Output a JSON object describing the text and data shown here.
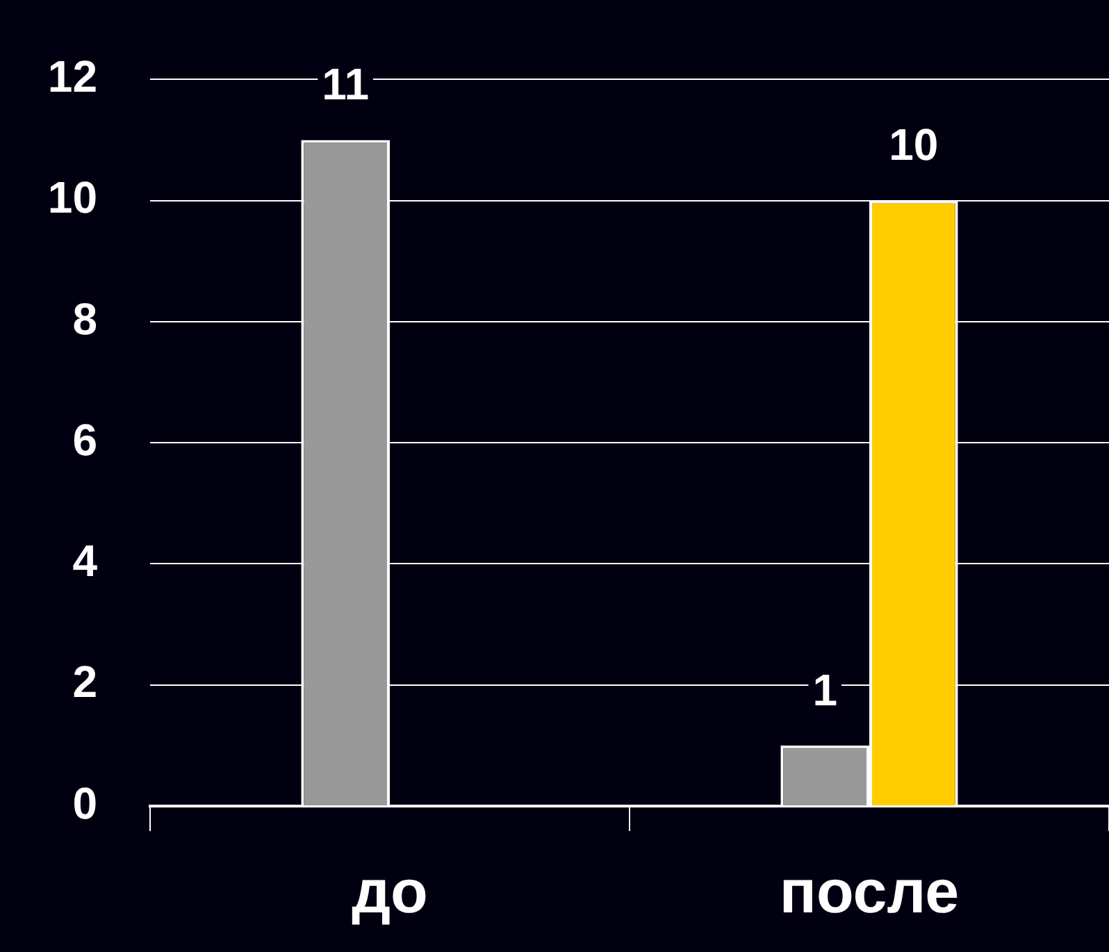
{
  "chart_data": {
    "type": "bar",
    "categories": [
      "до",
      "после"
    ],
    "series": [
      {
        "color": "#999999",
        "values": [
          11,
          1
        ]
      },
      {
        "color": "#ffcc00",
        "values": [
          null,
          10
        ]
      }
    ],
    "ylim": [
      0,
      12
    ],
    "yticks": [
      0,
      2,
      4,
      6,
      8,
      10,
      12
    ],
    "grid": "y",
    "legend": false,
    "data_labels": true
  }
}
